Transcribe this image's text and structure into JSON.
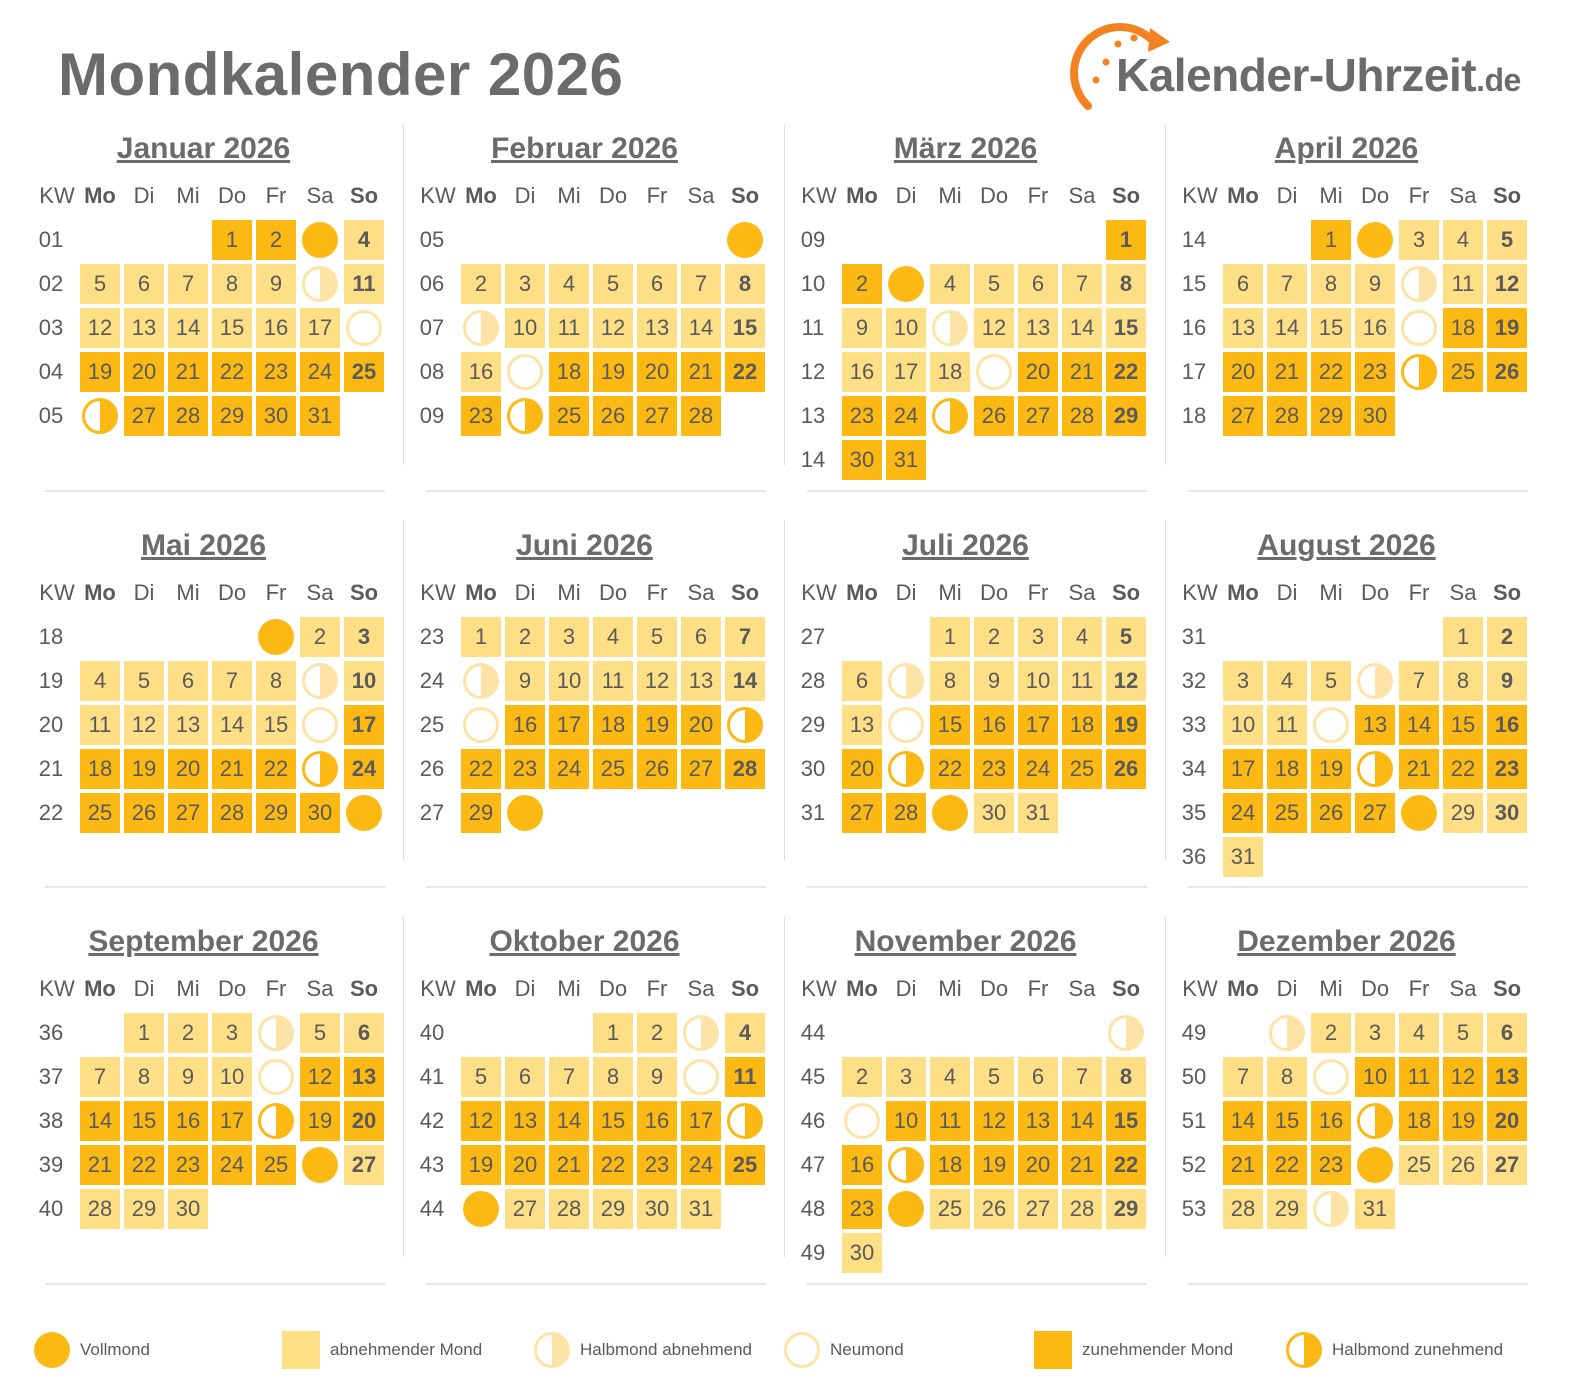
{
  "title": "Mondkalender 2026",
  "logo": {
    "name": "Kalender-Uhrzeit",
    "tld": ".de"
  },
  "colors": {
    "zunehmend": "#fdb913",
    "abnehmend": "#fedf86",
    "ring_light": "#fde3a6",
    "text": "#5a5a5a"
  },
  "weekday_header": {
    "kw": "KW",
    "days": [
      "Mo",
      "Di",
      "Mi",
      "Do",
      "Fr",
      "Sa",
      "So"
    ]
  },
  "months": [
    {
      "title": "Januar 2026",
      "kw": [
        "01",
        "02",
        "03",
        "04",
        "05"
      ],
      "days": [
        [
          "",
          "",
          "",
          "1z",
          "2z",
          "F",
          "4w"
        ],
        [
          "5w",
          "6w",
          "7w",
          "8w",
          "9w",
          "HW",
          "11w"
        ],
        [
          "12w",
          "13w",
          "14w",
          "15w",
          "16w",
          "17w",
          "N"
        ],
        [
          "19z",
          "20z",
          "21z",
          "22z",
          "23z",
          "24z",
          "25z"
        ],
        [
          "HZ",
          "27z",
          "28z",
          "29z",
          "30z",
          "31z",
          ""
        ]
      ]
    },
    {
      "title": "Februar 2026",
      "kw": [
        "05",
        "06",
        "07",
        "08",
        "09"
      ],
      "days": [
        [
          "",
          "",
          "",
          "",
          "",
          "",
          "F"
        ],
        [
          "2w",
          "3w",
          "4w",
          "5w",
          "6w",
          "7w",
          "8w"
        ],
        [
          "HW",
          "10w",
          "11w",
          "12w",
          "13w",
          "14w",
          "15w"
        ],
        [
          "16w",
          "N",
          "18z",
          "19z",
          "20z",
          "21z",
          "22z"
        ],
        [
          "23z",
          "HZ",
          "25z",
          "26z",
          "27z",
          "28z",
          ""
        ]
      ]
    },
    {
      "title": "März 2026",
      "kw": [
        "09",
        "10",
        "11",
        "12",
        "13",
        "14"
      ],
      "days": [
        [
          "",
          "",
          "",
          "",
          "",
          "",
          "1z"
        ],
        [
          "2z",
          "F",
          "4w",
          "5w",
          "6w",
          "7w",
          "8w"
        ],
        [
          "9w",
          "10w",
          "HW",
          "12w",
          "13w",
          "14w",
          "15w"
        ],
        [
          "16w",
          "17w",
          "18w",
          "N",
          "20z",
          "21z",
          "22z"
        ],
        [
          "23z",
          "24z",
          "HZ",
          "26z",
          "27z",
          "28z",
          "29z"
        ],
        [
          "30z",
          "31z",
          "",
          "",
          "",
          "",
          ""
        ]
      ]
    },
    {
      "title": "April 2026",
      "kw": [
        "14",
        "15",
        "16",
        "17",
        "18"
      ],
      "days": [
        [
          "",
          "",
          "1z",
          "F",
          "3w",
          "4w",
          "5w"
        ],
        [
          "6w",
          "7w",
          "8w",
          "9w",
          "HW",
          "11w",
          "12w"
        ],
        [
          "13w",
          "14w",
          "15w",
          "16w",
          "N",
          "18z",
          "19z"
        ],
        [
          "20z",
          "21z",
          "22z",
          "23z",
          "HZ",
          "25z",
          "26z"
        ],
        [
          "27z",
          "28z",
          "29z",
          "30z",
          "",
          "",
          ""
        ]
      ]
    },
    {
      "title": "Mai 2026",
      "kw": [
        "18",
        "19",
        "20",
        "21",
        "22"
      ],
      "days": [
        [
          "",
          "",
          "",
          "",
          "F",
          "2w",
          "3w"
        ],
        [
          "4w",
          "5w",
          "6w",
          "7w",
          "8w",
          "HW",
          "10w"
        ],
        [
          "11w",
          "12w",
          "13w",
          "14w",
          "15w",
          "N",
          "17z"
        ],
        [
          "18z",
          "19z",
          "20z",
          "21z",
          "22z",
          "HZ",
          "24z"
        ],
        [
          "25z",
          "26z",
          "27z",
          "28z",
          "29z",
          "30z",
          "F"
        ]
      ]
    },
    {
      "title": "Juni 2026",
      "kw": [
        "23",
        "24",
        "25",
        "26",
        "27"
      ],
      "days": [
        [
          "1w",
          "2w",
          "3w",
          "4w",
          "5w",
          "6w",
          "7w"
        ],
        [
          "HW",
          "9w",
          "10w",
          "11w",
          "12w",
          "13w",
          "14w"
        ],
        [
          "N",
          "16z",
          "17z",
          "18z",
          "19z",
          "20z",
          "HZ"
        ],
        [
          "22z",
          "23z",
          "24z",
          "25z",
          "26z",
          "27z",
          "28z"
        ],
        [
          "29z",
          "F",
          "",
          "",
          "",
          "",
          ""
        ]
      ]
    },
    {
      "title": "Juli 2026",
      "kw": [
        "27",
        "28",
        "29",
        "30",
        "31"
      ],
      "days": [
        [
          "",
          "",
          "1w",
          "2w",
          "3w",
          "4w",
          "5w"
        ],
        [
          "6w",
          "HW",
          "8w",
          "9w",
          "10w",
          "11w",
          "12w"
        ],
        [
          "13w",
          "N",
          "15z",
          "16z",
          "17z",
          "18z",
          "19z"
        ],
        [
          "20z",
          "HZ",
          "22z",
          "23z",
          "24z",
          "25z",
          "26z"
        ],
        [
          "27z",
          "28z",
          "F",
          "30w",
          "31w",
          "",
          ""
        ]
      ]
    },
    {
      "title": "August 2026",
      "kw": [
        "31",
        "32",
        "33",
        "34",
        "35",
        "36"
      ],
      "days": [
        [
          "",
          "",
          "",
          "",
          "",
          "1w",
          "2w"
        ],
        [
          "3w",
          "4w",
          "5w",
          "HW",
          "7w",
          "8w",
          "9w"
        ],
        [
          "10w",
          "11w",
          "N",
          "13z",
          "14z",
          "15z",
          "16z"
        ],
        [
          "17z",
          "18z",
          "19z",
          "HZ",
          "21z",
          "22z",
          "23z"
        ],
        [
          "24z",
          "25z",
          "26z",
          "27z",
          "F",
          "29w",
          "30w"
        ],
        [
          "31w",
          "",
          "",
          "",
          "",
          "",
          ""
        ]
      ]
    },
    {
      "title": "September 2026",
      "kw": [
        "36",
        "37",
        "38",
        "39",
        "40"
      ],
      "days": [
        [
          "",
          "1w",
          "2w",
          "3w",
          "HW",
          "5w",
          "6w"
        ],
        [
          "7w",
          "8w",
          "9w",
          "10w",
          "N",
          "12z",
          "13z"
        ],
        [
          "14z",
          "15z",
          "16z",
          "17z",
          "HZ",
          "19z",
          "20z"
        ],
        [
          "21z",
          "22z",
          "23z",
          "24z",
          "25z",
          "F",
          "27w"
        ],
        [
          "28w",
          "29w",
          "30w",
          "",
          "",
          "",
          ""
        ]
      ]
    },
    {
      "title": "Oktober 2026",
      "kw": [
        "40",
        "41",
        "42",
        "43",
        "44"
      ],
      "days": [
        [
          "",
          "",
          "",
          "1w",
          "2w",
          "HW",
          "4w"
        ],
        [
          "5w",
          "6w",
          "7w",
          "8w",
          "9w",
          "N",
          "11z"
        ],
        [
          "12z",
          "13z",
          "14z",
          "15z",
          "16z",
          "17z",
          "HZ"
        ],
        [
          "19z",
          "20z",
          "21z",
          "22z",
          "23z",
          "24z",
          "25z"
        ],
        [
          "F",
          "27w",
          "28w",
          "29w",
          "30w",
          "31w",
          ""
        ]
      ]
    },
    {
      "title": "November 2026",
      "kw": [
        "44",
        "45",
        "46",
        "47",
        "48",
        "49"
      ],
      "days": [
        [
          "",
          "",
          "",
          "",
          "",
          "",
          "HW"
        ],
        [
          "2w",
          "3w",
          "4w",
          "5w",
          "6w",
          "7w",
          "8w"
        ],
        [
          "N",
          "10z",
          "11z",
          "12z",
          "13z",
          "14z",
          "15z"
        ],
        [
          "16z",
          "HZ",
          "18z",
          "19z",
          "20z",
          "21z",
          "22z"
        ],
        [
          "23z",
          "F",
          "25w",
          "26w",
          "27w",
          "28w",
          "29w"
        ],
        [
          "30w",
          "",
          "",
          "",
          "",
          "",
          ""
        ]
      ]
    },
    {
      "title": "Dezember 2026",
      "kw": [
        "49",
        "50",
        "51",
        "52",
        "53"
      ],
      "days": [
        [
          "",
          "HW",
          "2w",
          "3w",
          "4w",
          "5w",
          "6w"
        ],
        [
          "7w",
          "8w",
          "N",
          "10z",
          "11z",
          "12z",
          "13z"
        ],
        [
          "14z",
          "15z",
          "16z",
          "HZ",
          "18z",
          "19z",
          "20z"
        ],
        [
          "21z",
          "22z",
          "23z",
          "F",
          "25w",
          "26w",
          "27w"
        ],
        [
          "28w",
          "29w",
          "HW",
          "31w",
          "",
          "",
          ""
        ]
      ]
    }
  ],
  "legend": [
    {
      "key": "F",
      "label": "Vollmond"
    },
    {
      "key": "w",
      "label": "abnehmender Mond"
    },
    {
      "key": "HW",
      "label": "Halbmond abnehmend"
    },
    {
      "key": "N",
      "label": "Neumond"
    },
    {
      "key": "z",
      "label": "zunehmender Mond"
    },
    {
      "key": "HZ",
      "label": "Halbmond zunehmend"
    }
  ]
}
